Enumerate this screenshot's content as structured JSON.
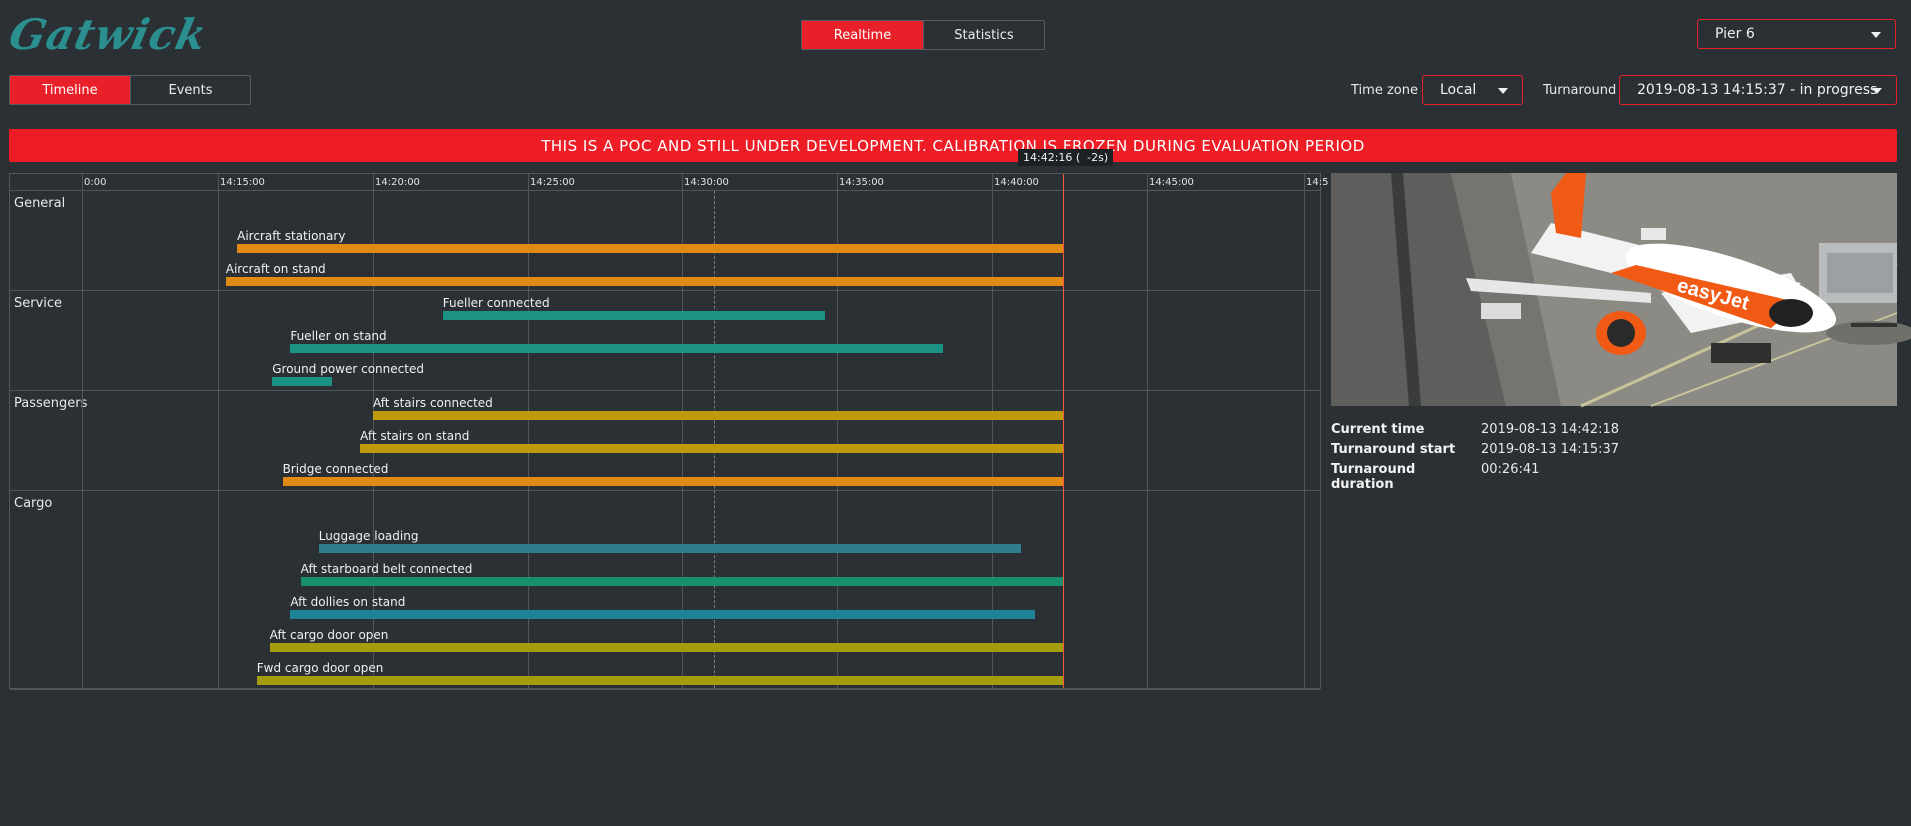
{
  "brand": {
    "logo_text": "Gatwick"
  },
  "mode_tabs": {
    "realtime": "Realtime",
    "statistics": "Statistics",
    "active": "realtime"
  },
  "pier": {
    "selected": "Pier 6"
  },
  "view_tabs": {
    "timeline": "Timeline",
    "events": "Events",
    "active": "timeline"
  },
  "timezone": {
    "label": "Time zone",
    "selected": "Local"
  },
  "turnaround": {
    "label": "Turnaround",
    "selected": "2019-08-13 14:15:37 - in progress"
  },
  "banner": {
    "text": "THIS IS A POC AND STILL UNDER DEVELOPMENT. CALIBRATION IS FROZEN DURING EVALUATION PERIOD",
    "color": "#ee1c25"
  },
  "timeline": {
    "tick_labels": [
      "0:00",
      "14:15:00",
      "14:20:00",
      "14:25:00",
      "14:30:00",
      "14:35:00",
      "14:40:00",
      "14:45:00",
      "14:5"
    ],
    "now_tooltip": "14:42:16 (  -2s)",
    "groups": [
      {
        "name": "General",
        "events": [
          {
            "label": "Aircraft stationary",
            "start": "14:15:37",
            "end": "14:42:16",
            "color": "#e08a13"
          },
          {
            "label": "Aircraft on stand",
            "start": "14:15:15",
            "end": "14:42:16",
            "color": "#e08a13"
          }
        ]
      },
      {
        "name": "Service",
        "events": [
          {
            "label": "Fueller connected",
            "start": "14:22:15",
            "end": "14:34:35",
            "color": "#1b9283"
          },
          {
            "label": "Fueller on stand",
            "start": "14:17:20",
            "end": "14:38:23",
            "color": "#1b9283"
          },
          {
            "label": "Ground power connected",
            "start": "14:16:45",
            "end": "14:18:40",
            "color": "#1b9283"
          }
        ]
      },
      {
        "name": "Passengers",
        "events": [
          {
            "label": "Aft stairs connected",
            "start": "14:20:00",
            "end": "14:42:16",
            "color": "#bf9a0c"
          },
          {
            "label": "Aft stairs on stand",
            "start": "14:19:35",
            "end": "14:42:16",
            "color": "#bf9a0c"
          },
          {
            "label": "Bridge connected",
            "start": "14:17:05",
            "end": "14:42:16",
            "color": "#e08a13"
          }
        ]
      },
      {
        "name": "Cargo",
        "events": [
          {
            "label": "Luggage loading",
            "start": "14:18:15",
            "end": "14:40:55",
            "color": "#2e7c8c"
          },
          {
            "label": "Aft starboard belt connected",
            "start": "14:17:40",
            "end": "14:42:16",
            "color": "#1a8f6e"
          },
          {
            "label": "Aft dollies on stand",
            "start": "14:17:20",
            "end": "14:41:22",
            "color": "#1d8497"
          },
          {
            "label": "Aft cargo door open",
            "start": "14:16:40",
            "end": "14:42:16",
            "color": "#a49c0d"
          },
          {
            "label": "Fwd cargo door open",
            "start": "14:16:15",
            "end": "14:42:16",
            "color": "#a49c0d"
          }
        ]
      }
    ]
  },
  "camera": {
    "caption": "Camera view of easyJet aircraft on stand"
  },
  "info": [
    {
      "key": "Current time",
      "value": "2019-08-13 14:42:18"
    },
    {
      "key": "Turnaround start",
      "value": "2019-08-13 14:15:37"
    },
    {
      "key": "Turnaround duration",
      "value": "00:26:41"
    }
  ]
}
